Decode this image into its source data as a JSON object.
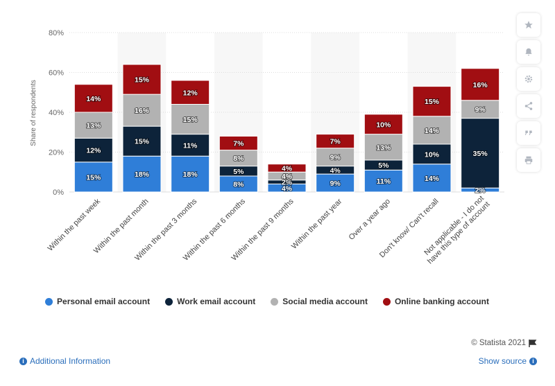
{
  "chart_data": {
    "type": "bar",
    "stacked": true,
    "categories": [
      "Within the past week",
      "Within the past month",
      "Within the past 3 months",
      "Within the past 6 months",
      "Within the past 9 months",
      "Within the past year",
      "Over a year ago",
      "Don't know/ Can't recall",
      "Not applicable - I do not have this type of account"
    ],
    "series": [
      {
        "name": "Personal email account",
        "color": "#2f7ed8",
        "values": [
          15,
          18,
          18,
          8,
          4,
          9,
          11,
          14,
          2
        ]
      },
      {
        "name": "Work email account",
        "color": "#0d233a",
        "values": [
          12,
          15,
          11,
          5,
          2,
          4,
          5,
          10,
          35
        ]
      },
      {
        "name": "Social media account",
        "color": "#b2b2b2",
        "values": [
          13,
          16,
          15,
          8,
          4,
          9,
          13,
          14,
          9
        ]
      },
      {
        "name": "Online banking account",
        "color": "#a10e12",
        "values": [
          14,
          15,
          12,
          7,
          4,
          7,
          10,
          15,
          16
        ]
      }
    ],
    "ylabel": "Share of respondents",
    "xlabel": "",
    "ylim": [
      0,
      80
    ],
    "yticks": [
      "0%",
      "20%",
      "40%",
      "60%",
      "80%"
    ],
    "value_suffix": "%",
    "grid": true,
    "legend_position": "bottom"
  },
  "footer": {
    "copyright": "© Statista 2021",
    "additional_info": "Additional Information",
    "show_source": "Show source"
  },
  "toolbar": {
    "icons": [
      "star-icon",
      "bell-icon",
      "gear-icon",
      "share-icon",
      "quote-icon",
      "print-icon"
    ]
  }
}
